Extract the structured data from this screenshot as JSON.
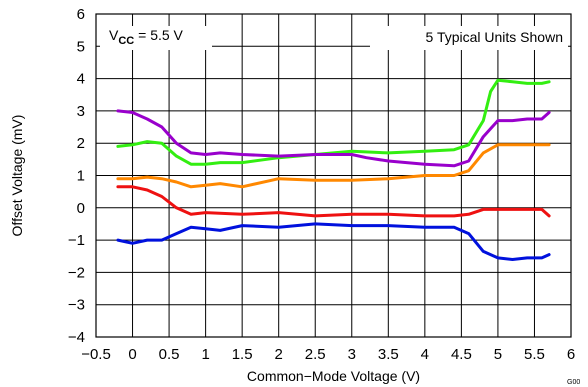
{
  "chart_data": {
    "type": "line",
    "xlabel": "Common−Mode Voltage (V)",
    "ylabel": "Offset Voltage (mV)",
    "xlim": [
      -0.5,
      6
    ],
    "ylim": [
      -4,
      6
    ],
    "xticks": [
      -0.5,
      0,
      0.5,
      1,
      1.5,
      2,
      2.5,
      3,
      3.5,
      4,
      4.5,
      5,
      5.5,
      6
    ],
    "xtick_labels": [
      "−0.5",
      "0",
      "0.5",
      "1",
      "1.5",
      "2",
      "2.5",
      "3",
      "3.5",
      "4",
      "4.5",
      "5",
      "5.5",
      "6"
    ],
    "yticks": [
      -4,
      -3,
      -2,
      -1,
      0,
      1,
      2,
      3,
      4,
      5,
      6
    ],
    "ytick_labels": [
      "−4",
      "−3",
      "−2",
      "−1",
      "0",
      "1",
      "2",
      "3",
      "4",
      "5",
      "6"
    ],
    "grid": true,
    "annotations": {
      "vcc_prefix": "V",
      "vcc_subscript": "CC",
      "vcc_value": " = 5.5 V",
      "units_note": "5 Typical Units Shown",
      "figure_id": "G00"
    },
    "series": [
      {
        "color": "#33ee11",
        "x": [
          -0.2,
          0,
          0.2,
          0.4,
          0.6,
          0.8,
          1.0,
          1.2,
          1.5,
          2.0,
          2.5,
          3.0,
          3.5,
          4.0,
          4.4,
          4.6,
          4.8,
          4.9,
          5.0,
          5.2,
          5.4,
          5.6,
          5.7
        ],
        "y": [
          1.9,
          1.95,
          2.05,
          2.0,
          1.6,
          1.35,
          1.35,
          1.4,
          1.4,
          1.55,
          1.65,
          1.75,
          1.7,
          1.75,
          1.8,
          1.95,
          2.7,
          3.6,
          3.95,
          3.9,
          3.85,
          3.85,
          3.9
        ]
      },
      {
        "color": "#9900cc",
        "x": [
          -0.2,
          0,
          0.2,
          0.4,
          0.6,
          0.8,
          1.0,
          1.2,
          1.5,
          2.0,
          2.5,
          3.0,
          3.2,
          3.5,
          4.0,
          4.4,
          4.6,
          4.8,
          5.0,
          5.2,
          5.4,
          5.6,
          5.7
        ],
        "y": [
          3.0,
          2.95,
          2.75,
          2.5,
          2.0,
          1.7,
          1.65,
          1.7,
          1.65,
          1.6,
          1.65,
          1.65,
          1.55,
          1.45,
          1.35,
          1.3,
          1.45,
          2.2,
          2.7,
          2.7,
          2.75,
          2.75,
          2.95
        ]
      },
      {
        "color": "#ff8800",
        "x": [
          -0.2,
          0,
          0.2,
          0.4,
          0.6,
          0.8,
          1.0,
          1.2,
          1.5,
          2.0,
          2.5,
          3.0,
          3.5,
          4.0,
          4.4,
          4.6,
          4.8,
          5.0,
          5.2,
          5.4,
          5.6,
          5.7
        ],
        "y": [
          0.9,
          0.9,
          0.95,
          0.9,
          0.8,
          0.65,
          0.7,
          0.75,
          0.65,
          0.9,
          0.85,
          0.85,
          0.9,
          1.0,
          1.0,
          1.15,
          1.7,
          1.95,
          1.95,
          1.95,
          1.95,
          1.95
        ]
      },
      {
        "color": "#ee1111",
        "x": [
          -0.2,
          0,
          0.2,
          0.4,
          0.6,
          0.8,
          1.0,
          1.5,
          2.0,
          2.5,
          3.0,
          3.5,
          4.0,
          4.4,
          4.6,
          4.8,
          5.0,
          5.2,
          5.4,
          5.6,
          5.7
        ],
        "y": [
          0.65,
          0.65,
          0.55,
          0.35,
          0.0,
          -0.2,
          -0.15,
          -0.2,
          -0.15,
          -0.25,
          -0.2,
          -0.2,
          -0.25,
          -0.25,
          -0.2,
          -0.05,
          -0.05,
          -0.05,
          -0.05,
          -0.05,
          -0.25
        ]
      },
      {
        "color": "#0011dd",
        "x": [
          -0.2,
          0,
          0.2,
          0.4,
          0.6,
          0.8,
          1.0,
          1.2,
          1.5,
          2.0,
          2.5,
          3.0,
          3.5,
          4.0,
          4.4,
          4.6,
          4.8,
          5.0,
          5.2,
          5.4,
          5.6,
          5.7
        ],
        "y": [
          -1.0,
          -1.1,
          -1.0,
          -1.0,
          -0.8,
          -0.6,
          -0.65,
          -0.7,
          -0.55,
          -0.6,
          -0.5,
          -0.55,
          -0.55,
          -0.6,
          -0.6,
          -0.8,
          -1.35,
          -1.55,
          -1.6,
          -1.55,
          -1.55,
          -1.45
        ]
      }
    ]
  }
}
